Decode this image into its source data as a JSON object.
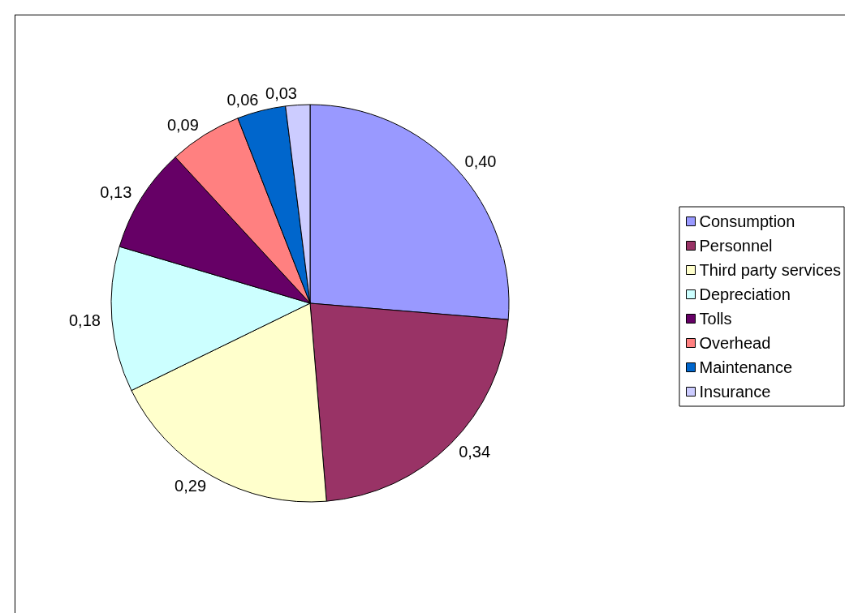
{
  "chart_data": {
    "type": "pie",
    "categories": [
      "Consumption",
      "Personnel",
      "Third party services",
      "Depreciation",
      "Tolls",
      "Overhead",
      "Maintenance",
      "Insurance"
    ],
    "values": [
      0.4,
      0.34,
      0.29,
      0.18,
      0.13,
      0.09,
      0.06,
      0.03
    ],
    "value_labels": [
      "0,40",
      "0,34",
      "0,29",
      "0,18",
      "0,13",
      "0,09",
      "0,06",
      "0,03"
    ],
    "colors": [
      "#9999ff",
      "#993366",
      "#ffffcc",
      "#ccffff",
      "#660066",
      "#ff8080",
      "#0066cc",
      "#ccccff"
    ],
    "legend": "right"
  }
}
